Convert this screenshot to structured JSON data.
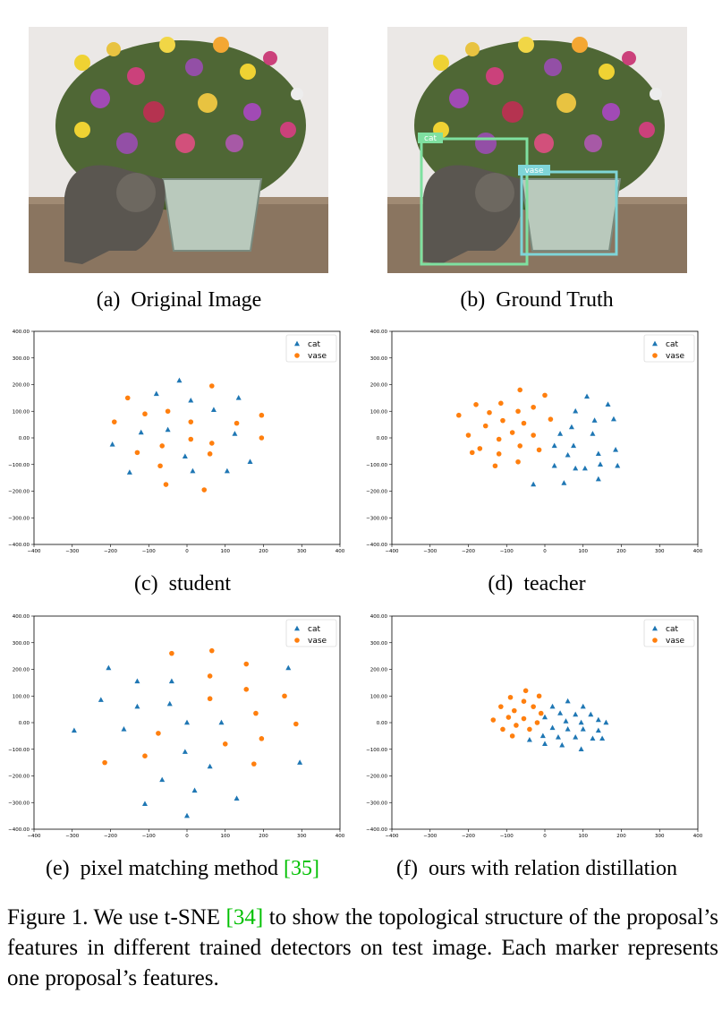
{
  "panels": {
    "a": {
      "label": "(a)",
      "text": "Original Image"
    },
    "b": {
      "label": "(b)",
      "text": "Ground Truth"
    },
    "c": {
      "label": "(c)",
      "text": "student"
    },
    "d": {
      "label": "(d)",
      "text": "teacher"
    },
    "e": {
      "label": "(e)",
      "text": "pixel matching method",
      "cite": "[35]"
    },
    "f": {
      "label": "(f)",
      "text": "ours with relation distillation"
    }
  },
  "boxes": {
    "cat": "cat",
    "vase": "vase",
    "cat_color": "#7fe0a0",
    "vase_color": "#7fd5d8"
  },
  "caption": {
    "prefix": "Figure 1. We use t-SNE ",
    "cite": "[34]",
    "rest": " to show the topological structure of the proposal’s features in different trained detectors on test image. Each marker represents one proposal’s features."
  },
  "colors": {
    "cat": "#1f77b4",
    "vase": "#ff7f0e",
    "cite": "#00c000"
  },
  "chart_data": [
    {
      "type": "scatter",
      "id": "student",
      "xlim": [
        -400,
        400
      ],
      "ylim": [
        -400,
        400
      ],
      "xticks": [
        -400,
        -300,
        -200,
        -100,
        0,
        100,
        200,
        300,
        400
      ],
      "yticks": [
        -400,
        -300,
        -200,
        -100,
        0,
        100,
        200,
        300,
        400
      ],
      "legend": "top-right",
      "series": [
        {
          "name": "cat",
          "marker": "triangle",
          "points": [
            [
              -20,
              215
            ],
            [
              -80,
              165
            ],
            [
              10,
              140
            ],
            [
              70,
              105
            ],
            [
              135,
              150
            ],
            [
              -50,
              30
            ],
            [
              -120,
              20
            ],
            [
              -195,
              -25
            ],
            [
              -5,
              -70
            ],
            [
              15,
              -125
            ],
            [
              -150,
              -130
            ],
            [
              105,
              -125
            ],
            [
              165,
              -90
            ],
            [
              125,
              15
            ]
          ]
        },
        {
          "name": "vase",
          "marker": "circle",
          "points": [
            [
              -155,
              150
            ],
            [
              -110,
              90
            ],
            [
              -50,
              100
            ],
            [
              65,
              195
            ],
            [
              -190,
              60
            ],
            [
              10,
              60
            ],
            [
              130,
              55
            ],
            [
              195,
              85
            ],
            [
              10,
              -5
            ],
            [
              65,
              -20
            ],
            [
              195,
              0
            ],
            [
              -65,
              -30
            ],
            [
              -130,
              -55
            ],
            [
              -70,
              -105
            ],
            [
              60,
              -60
            ],
            [
              -55,
              -175
            ],
            [
              45,
              -195
            ]
          ]
        }
      ]
    },
    {
      "type": "scatter",
      "id": "teacher",
      "xlim": [
        -400,
        400
      ],
      "ylim": [
        -400,
        400
      ],
      "xticks": [
        -400,
        -300,
        -200,
        -100,
        0,
        100,
        200,
        300,
        400
      ],
      "yticks": [
        -400,
        -300,
        -200,
        -100,
        0,
        100,
        200,
        300,
        400
      ],
      "legend": "top-right",
      "series": [
        {
          "name": "cat",
          "marker": "triangle",
          "points": [
            [
              110,
              155
            ],
            [
              165,
              125
            ],
            [
              80,
              100
            ],
            [
              130,
              65
            ],
            [
              180,
              70
            ],
            [
              70,
              40
            ],
            [
              40,
              15
            ],
            [
              125,
              15
            ],
            [
              25,
              -30
            ],
            [
              75,
              -30
            ],
            [
              60,
              -65
            ],
            [
              140,
              -60
            ],
            [
              185,
              -45
            ],
            [
              25,
              -105
            ],
            [
              80,
              -115
            ],
            [
              145,
              -100
            ],
            [
              190,
              -105
            ],
            [
              105,
              -115
            ],
            [
              50,
              -170
            ],
            [
              140,
              -155
            ],
            [
              -30,
              -175
            ]
          ]
        },
        {
          "name": "vase",
          "marker": "circle",
          "points": [
            [
              -65,
              180
            ],
            [
              0,
              160
            ],
            [
              -180,
              125
            ],
            [
              -115,
              130
            ],
            [
              -70,
              100
            ],
            [
              -30,
              115
            ],
            [
              -145,
              95
            ],
            [
              -225,
              85
            ],
            [
              15,
              70
            ],
            [
              -110,
              65
            ],
            [
              -55,
              55
            ],
            [
              -155,
              45
            ],
            [
              -85,
              20
            ],
            [
              -200,
              10
            ],
            [
              -30,
              10
            ],
            [
              -120,
              -5
            ],
            [
              -65,
              -30
            ],
            [
              -170,
              -40
            ],
            [
              -15,
              -45
            ],
            [
              -190,
              -55
            ],
            [
              -120,
              -60
            ],
            [
              -70,
              -90
            ],
            [
              -130,
              -105
            ]
          ]
        }
      ]
    },
    {
      "type": "scatter",
      "id": "pixel-matching",
      "xlim": [
        -400,
        400
      ],
      "ylim": [
        -400,
        400
      ],
      "xticks": [
        -400,
        -300,
        -200,
        -100,
        0,
        100,
        200,
        300,
        400
      ],
      "yticks": [
        -400,
        -300,
        -200,
        -100,
        0,
        100,
        200,
        300,
        400
      ],
      "legend": "top-right",
      "series": [
        {
          "name": "cat",
          "marker": "triangle",
          "points": [
            [
              -205,
              205
            ],
            [
              -130,
              155
            ],
            [
              -40,
              155
            ],
            [
              265,
              205
            ],
            [
              -225,
              85
            ],
            [
              -130,
              60
            ],
            [
              -45,
              70
            ],
            [
              0,
              0
            ],
            [
              90,
              0
            ],
            [
              -295,
              -30
            ],
            [
              -165,
              -25
            ],
            [
              -5,
              -110
            ],
            [
              60,
              -165
            ],
            [
              -65,
              -215
            ],
            [
              295,
              -150
            ],
            [
              20,
              -255
            ],
            [
              130,
              -285
            ],
            [
              -110,
              -305
            ],
            [
              0,
              -350
            ]
          ]
        },
        {
          "name": "vase",
          "marker": "circle",
          "points": [
            [
              -40,
              260
            ],
            [
              65,
              270
            ],
            [
              155,
              220
            ],
            [
              60,
              175
            ],
            [
              155,
              125
            ],
            [
              255,
              100
            ],
            [
              60,
              90
            ],
            [
              180,
              35
            ],
            [
              285,
              -5
            ],
            [
              -75,
              -40
            ],
            [
              100,
              -80
            ],
            [
              195,
              -60
            ],
            [
              -110,
              -125
            ],
            [
              -215,
              -150
            ],
            [
              175,
              -155
            ]
          ]
        }
      ]
    },
    {
      "type": "scatter",
      "id": "relation-distillation",
      "xlim": [
        -400,
        400
      ],
      "ylim": [
        -400,
        400
      ],
      "xticks": [
        -400,
        -300,
        -200,
        -100,
        0,
        100,
        200,
        300,
        400
      ],
      "yticks": [
        -400,
        -300,
        -200,
        -100,
        0,
        100,
        200,
        300,
        400
      ],
      "legend": "top-right",
      "series": [
        {
          "name": "cat",
          "marker": "triangle",
          "points": [
            [
              60,
              80
            ],
            [
              20,
              60
            ],
            [
              100,
              60
            ],
            [
              40,
              35
            ],
            [
              80,
              30
            ],
            [
              120,
              30
            ],
            [
              0,
              20
            ],
            [
              55,
              5
            ],
            [
              95,
              0
            ],
            [
              140,
              10
            ],
            [
              160,
              0
            ],
            [
              20,
              -20
            ],
            [
              60,
              -25
            ],
            [
              100,
              -25
            ],
            [
              140,
              -30
            ],
            [
              -5,
              -50
            ],
            [
              35,
              -55
            ],
            [
              80,
              -55
            ],
            [
              125,
              -60
            ],
            [
              150,
              -60
            ],
            [
              -40,
              -65
            ],
            [
              0,
              -80
            ],
            [
              45,
              -85
            ],
            [
              95,
              -100
            ]
          ]
        },
        {
          "name": "vase",
          "marker": "circle",
          "points": [
            [
              -50,
              120
            ],
            [
              -90,
              95
            ],
            [
              -15,
              100
            ],
            [
              -55,
              80
            ],
            [
              -115,
              60
            ],
            [
              -30,
              60
            ],
            [
              -80,
              45
            ],
            [
              -10,
              35
            ],
            [
              -95,
              20
            ],
            [
              -55,
              15
            ],
            [
              -135,
              10
            ],
            [
              -20,
              0
            ],
            [
              -75,
              -10
            ],
            [
              -110,
              -25
            ],
            [
              -40,
              -25
            ],
            [
              -85,
              -50
            ]
          ]
        }
      ]
    }
  ]
}
